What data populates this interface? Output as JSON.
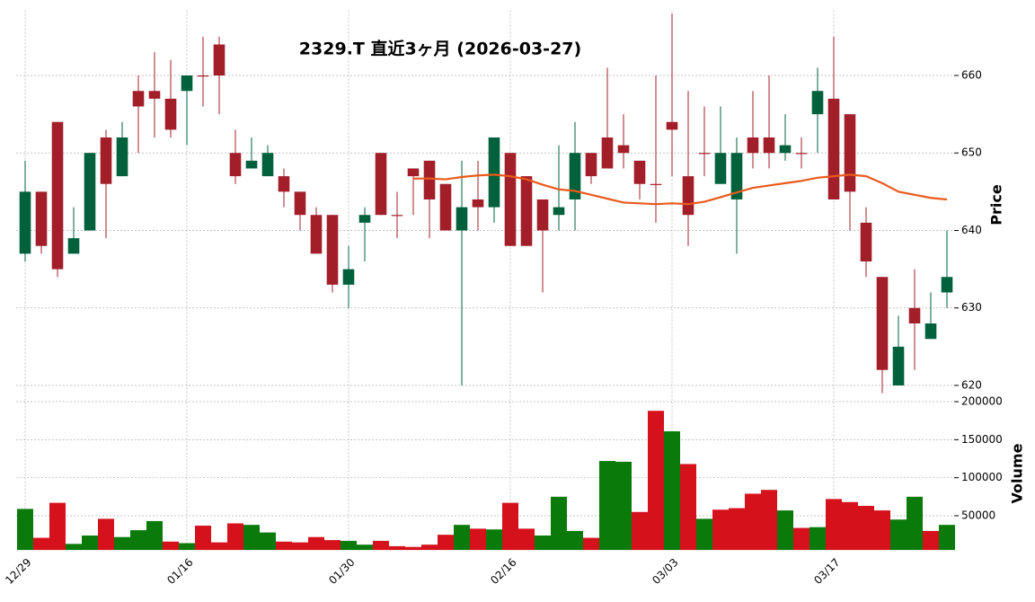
{
  "chart_data": {
    "type": "candlestick",
    "title": "2329.T  直近3ヶ月  (2026-03-27)",
    "categories": [
      "12/29",
      null,
      null,
      null,
      null,
      null,
      null,
      null,
      null,
      null,
      "01/16",
      null,
      null,
      null,
      null,
      null,
      null,
      null,
      null,
      null,
      "01/30",
      null,
      null,
      null,
      null,
      null,
      null,
      null,
      null,
      null,
      "02/16",
      null,
      null,
      null,
      null,
      null,
      null,
      null,
      null,
      null,
      "03/03",
      null,
      null,
      null,
      null,
      null,
      null,
      null,
      null,
      null,
      "03/17",
      null,
      null,
      null,
      null,
      null,
      null,
      null
    ],
    "open": [
      637,
      645,
      654,
      637,
      640,
      652,
      647,
      658,
      658,
      657,
      658,
      660,
      664,
      650,
      648,
      647,
      647,
      645,
      642,
      642,
      633,
      641,
      650,
      642,
      648,
      649,
      646,
      640,
      644,
      643,
      650,
      647,
      644,
      642,
      644,
      650,
      652,
      651,
      649,
      646,
      654,
      647,
      650,
      646,
      644,
      652,
      652,
      650,
      650,
      655,
      657,
      655,
      641,
      634,
      620,
      630,
      626,
      632
    ],
    "high": [
      649,
      645,
      654,
      643,
      650,
      653,
      654,
      660,
      663,
      662,
      660,
      665,
      665,
      653,
      652,
      651,
      648,
      645,
      643,
      642,
      638,
      643,
      650,
      645,
      648,
      649,
      646,
      649,
      649,
      652,
      650,
      647,
      644,
      651,
      654,
      650,
      661,
      655,
      649,
      660,
      668,
      658,
      656,
      656,
      652,
      658,
      660,
      655,
      652,
      661,
      665,
      655,
      643,
      634,
      629,
      635,
      632,
      640
    ],
    "low": [
      636,
      637,
      634,
      637,
      640,
      639,
      647,
      650,
      652,
      652,
      651,
      656,
      655,
      646,
      648,
      647,
      643,
      640,
      637,
      632,
      630,
      636,
      642,
      639,
      642,
      639,
      640,
      620,
      640,
      641,
      638,
      638,
      632,
      640,
      640,
      646,
      648,
      648,
      644,
      641,
      647,
      638,
      647,
      646,
      637,
      648,
      648,
      649,
      648,
      650,
      644,
      640,
      634,
      619,
      620,
      622,
      626,
      630
    ],
    "close": [
      645,
      638,
      635,
      639,
      650,
      646,
      652,
      656,
      657,
      653,
      660,
      660,
      660,
      647,
      649,
      650,
      645,
      642,
      637,
      633,
      635,
      642,
      642,
      642,
      647,
      644,
      640,
      643,
      643,
      652,
      638,
      638,
      640,
      643,
      650,
      647,
      648,
      650,
      646,
      646,
      653,
      642,
      650,
      650,
      650,
      650,
      650,
      651,
      650,
      658,
      644,
      645,
      636,
      622,
      625,
      628,
      628,
      634
    ],
    "up_color": "#00613c",
    "down_color": "#a21f2a",
    "ma": {
      "color": "#ea5a1c",
      "values": [
        null,
        null,
        null,
        null,
        null,
        null,
        null,
        null,
        null,
        null,
        null,
        null,
        null,
        null,
        null,
        null,
        null,
        null,
        null,
        null,
        null,
        null,
        null,
        null,
        646.7,
        646.7,
        646.6,
        646.9,
        647.1,
        647.2,
        647,
        646.6,
        645.9,
        645.3,
        645.1,
        644.6,
        644.1,
        643.6,
        643.5,
        643.4,
        643.5,
        643.4,
        643.7,
        644.3,
        644.9,
        645.5,
        645.8,
        646.1,
        646.4,
        646.8,
        647,
        647.2,
        647,
        646.1,
        645,
        644.6,
        644.2,
        644
      ]
    },
    "ylim": [
      619,
      668.4
    ],
    "yticks": [
      620,
      630,
      640,
      650,
      660
    ],
    "ylabel": "Price",
    "grid": true,
    "volume": {
      "ylabel": "Volume",
      "values": [
        59000,
        21000,
        67000,
        13000,
        24000,
        46000,
        22000,
        31000,
        43000,
        16000,
        14000,
        37000,
        15000,
        40000,
        38000,
        28000,
        16000,
        15000,
        22000,
        18000,
        17000,
        12000,
        17000,
        10000,
        9000,
        12000,
        25000,
        38000,
        33000,
        32000,
        67000,
        33000,
        24000,
        75000,
        30000,
        21000,
        122000,
        121000,
        55000,
        188000,
        161000,
        118000,
        46000,
        58000,
        60000,
        79000,
        84000,
        57000,
        34000,
        35000,
        72000,
        68000,
        63000,
        57000,
        45000,
        75000,
        30000,
        38000
      ],
      "colors": [
        "#0a7a0a",
        "#d5121c",
        "#d5121c",
        "#0a7a0a",
        "#0a7a0a",
        "#d5121c",
        "#0a7a0a",
        "#0a7a0a",
        "#0a7a0a",
        "#d5121c",
        "#0a7a0a",
        "#d5121c",
        "#d5121c",
        "#d5121c",
        "#0a7a0a",
        "#0a7a0a",
        "#d5121c",
        "#d5121c",
        "#d5121c",
        "#d5121c",
        "#0a7a0a",
        "#0a7a0a",
        "#d5121c",
        "#d5121c",
        "#d5121c",
        "#d5121c",
        "#d5121c",
        "#0a7a0a",
        "#d5121c",
        "#0a7a0a",
        "#d5121c",
        "#d5121c",
        "#0a7a0a",
        "#0a7a0a",
        "#0a7a0a",
        "#d5121c",
        "#0a7a0a",
        "#0a7a0a",
        "#d5121c",
        "#d5121c",
        "#0a7a0a",
        "#d5121c",
        "#0a7a0a",
        "#d5121c",
        "#d5121c",
        "#d5121c",
        "#d5121c",
        "#0a7a0a",
        "#d5121c",
        "#0a7a0a",
        "#d5121c",
        "#d5121c",
        "#d5121c",
        "#d5121c",
        "#0a7a0a",
        "#0a7a0a",
        "#d5121c",
        "#0a7a0a"
      ],
      "ylim": [
        5000,
        205000
      ],
      "yticks": [
        50000,
        100000,
        150000,
        200000
      ]
    }
  }
}
